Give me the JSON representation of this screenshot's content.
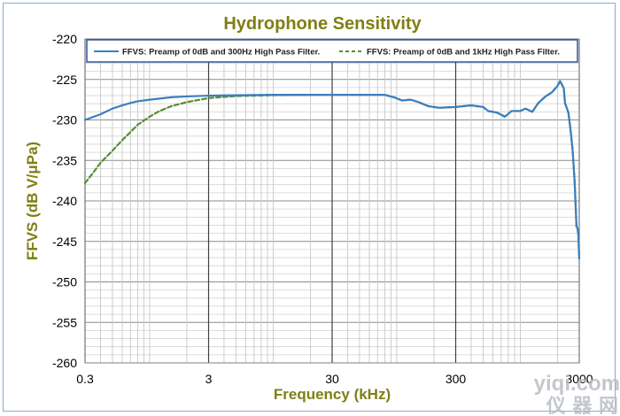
{
  "chart_data": {
    "type": "line",
    "title": "Hydrophone Sensitivity",
    "xlabel": "Frequency (kHz)",
    "ylabel": "FFVS (dB V/μPa)",
    "xscale": "log",
    "xlim": [
      0.3,
      3000
    ],
    "ylim": [
      -260,
      -220
    ],
    "xticks": [
      "0.3",
      "3",
      "30",
      "300",
      "3000"
    ],
    "yticks": [
      "-220",
      "-225",
      "-230",
      "-235",
      "-240",
      "-245",
      "-250",
      "-255",
      "-260"
    ],
    "grid": true,
    "legend_position": "top",
    "series": [
      {
        "name": "FFVS: Preamp of 0dB and 300Hz High Pass Filter.",
        "color": "#3a7fc1",
        "dash": "solid",
        "points": [
          [
            0.3,
            -230
          ],
          [
            0.4,
            -229.3
          ],
          [
            0.5,
            -228.6
          ],
          [
            0.6,
            -228.2
          ],
          [
            0.7,
            -227.9
          ],
          [
            0.8,
            -227.7
          ],
          [
            1,
            -227.5
          ],
          [
            1.5,
            -227.2
          ],
          [
            2,
            -227.1
          ],
          [
            3,
            -227
          ],
          [
            5,
            -226.95
          ],
          [
            10,
            -226.9
          ],
          [
            30,
            -226.9
          ],
          [
            70,
            -226.9
          ],
          [
            80,
            -226.9
          ],
          [
            95,
            -227.2
          ],
          [
            110,
            -227.6
          ],
          [
            130,
            -227.5
          ],
          [
            150,
            -227.8
          ],
          [
            180,
            -228.3
          ],
          [
            220,
            -228.5
          ],
          [
            300,
            -228.4
          ],
          [
            400,
            -228.2
          ],
          [
            500,
            -228.4
          ],
          [
            550,
            -228.9
          ],
          [
            650,
            -229.1
          ],
          [
            750,
            -229.6
          ],
          [
            850,
            -228.9
          ],
          [
            1000,
            -228.9
          ],
          [
            1100,
            -228.6
          ],
          [
            1250,
            -229
          ],
          [
            1400,
            -227.9
          ],
          [
            1600,
            -227.1
          ],
          [
            1800,
            -226.6
          ],
          [
            2000,
            -225.8
          ],
          [
            2100,
            -225.2
          ],
          [
            2250,
            -226.1
          ],
          [
            2300,
            -227.9
          ],
          [
            2450,
            -229.1
          ],
          [
            2550,
            -231.2
          ],
          [
            2650,
            -233.7
          ],
          [
            2750,
            -237.5
          ],
          [
            2850,
            -243.2
          ],
          [
            2900,
            -243.3
          ],
          [
            2950,
            -244.2
          ],
          [
            3000,
            -247.1
          ]
        ]
      },
      {
        "name": "FFVS: Preamp of 0dB and 1kHz High Pass Filter.",
        "color": "#5a8c2f",
        "dash": "dashed",
        "points": [
          [
            0.3,
            -237.8
          ],
          [
            0.35,
            -236.5
          ],
          [
            0.4,
            -235.3
          ],
          [
            0.5,
            -233.8
          ],
          [
            0.6,
            -232.5
          ],
          [
            0.7,
            -231.5
          ],
          [
            0.8,
            -230.6
          ],
          [
            1,
            -229.6
          ],
          [
            1.2,
            -228.9
          ],
          [
            1.5,
            -228.3
          ],
          [
            2,
            -227.8
          ],
          [
            3,
            -227.3
          ],
          [
            5,
            -227.05
          ],
          [
            10,
            -226.95
          ],
          [
            30,
            -226.9
          ],
          [
            70,
            -226.9
          ],
          [
            80,
            -226.9
          ],
          [
            95,
            -227.2
          ],
          [
            110,
            -227.6
          ],
          [
            130,
            -227.5
          ],
          [
            150,
            -227.8
          ],
          [
            180,
            -228.3
          ],
          [
            220,
            -228.5
          ],
          [
            300,
            -228.4
          ],
          [
            400,
            -228.2
          ],
          [
            500,
            -228.4
          ],
          [
            550,
            -228.9
          ],
          [
            650,
            -229.1
          ],
          [
            750,
            -229.6
          ],
          [
            850,
            -228.9
          ],
          [
            1000,
            -228.9
          ],
          [
            1100,
            -228.6
          ],
          [
            1250,
            -229
          ],
          [
            1400,
            -227.9
          ],
          [
            1600,
            -227.1
          ],
          [
            1800,
            -226.6
          ],
          [
            2000,
            -225.8
          ],
          [
            2100,
            -225.2
          ],
          [
            2250,
            -226.1
          ],
          [
            2300,
            -227.9
          ],
          [
            2450,
            -229.1
          ],
          [
            2550,
            -231.2
          ],
          [
            2650,
            -233.7
          ],
          [
            2750,
            -237.5
          ],
          [
            2850,
            -243.2
          ],
          [
            2900,
            -243.3
          ],
          [
            2950,
            -244.2
          ],
          [
            3000,
            -247.1
          ]
        ]
      }
    ]
  },
  "watermark": {
    "text": "yiqi.com",
    "text_cn": "仪 器 网"
  }
}
